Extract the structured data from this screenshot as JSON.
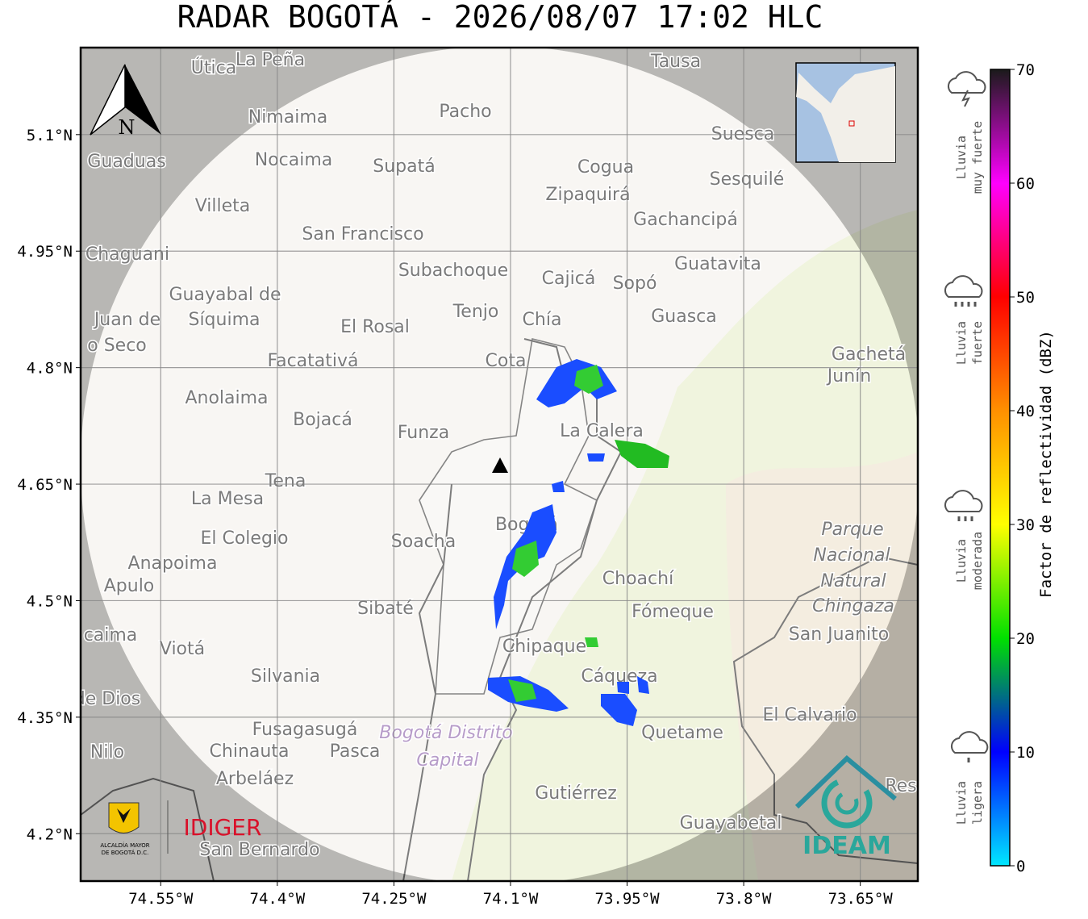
{
  "title": "RADAR BOGOTÁ - 2026/08/07 17:02 HLC",
  "map": {
    "lat_range": [
      4.139,
      5.212
    ],
    "lon_range": [
      -74.653,
      -73.576
    ],
    "lat_ticks": [
      {
        "value": 5.1,
        "label": "5.1°N"
      },
      {
        "value": 4.95,
        "label": "4.95°N"
      },
      {
        "value": 4.8,
        "label": "4.8°N"
      },
      {
        "value": 4.65,
        "label": "4.65°N"
      },
      {
        "value": 4.5,
        "label": "4.5°N"
      },
      {
        "value": 4.35,
        "label": "4.35°N"
      },
      {
        "value": 4.2,
        "label": "4.2°N"
      }
    ],
    "lon_ticks": [
      {
        "value": -74.55,
        "label": "74.55°W"
      },
      {
        "value": -74.4,
        "label": "74.4°W"
      },
      {
        "value": -74.25,
        "label": "74.25°W"
      },
      {
        "value": -74.1,
        "label": "74.1°W"
      },
      {
        "value": -73.95,
        "label": "73.95°W"
      },
      {
        "value": -73.8,
        "label": "73.8°W"
      },
      {
        "value": -73.65,
        "label": "73.65°W"
      }
    ],
    "grid": true,
    "north": "N",
    "places": [
      "Útica",
      "La Peña",
      "Tausa",
      "Pacho",
      "Nimaima",
      "Guaduas",
      "Nocaima",
      "Supatá",
      "Cogua",
      "Suesca",
      "Sesquilé",
      "Zipaquirá",
      "Villeta",
      "Gachancipá",
      "San Francisco",
      "Chaguani",
      "Guatavita",
      "Subachoque",
      "Cajicá",
      "Sopó",
      "Guayabal de",
      "Síquima",
      "Juan de",
      "Tenjo",
      "Chía",
      "Guasca",
      "El Rosal",
      "o Seco",
      "Facatativá",
      "Gachetá",
      "Junín",
      "Cota",
      "Anolaima",
      "Bojacá",
      "Funza",
      "La Calera",
      "Tena",
      "La Mesa",
      "Parque",
      "El Colegio",
      "Soacha",
      "Bogotá",
      "Nacional",
      "Anapoima",
      "Natural",
      "Choachí",
      "Apulo",
      "Chingaza",
      "Sibaté",
      "Fómeque",
      "San Juanito",
      "caima",
      "Chipaque",
      "Viotá",
      "Silvania",
      "Cáqueza",
      "de Dios",
      "El Calvario",
      "Quetame",
      "Fusagasugá",
      "Bogotá Distrito",
      "Capital",
      "Nilo",
      "Chinauta",
      "Pasca",
      "Arbeláez",
      "Gutiérrez",
      "Guayabetal",
      "San Bernardo",
      "Res"
    ]
  },
  "colorbar": {
    "label": "Factor de reflectividad (dBZ)",
    "range": [
      0,
      70
    ],
    "ticks": [
      0,
      10,
      20,
      30,
      40,
      50,
      60,
      70
    ],
    "colors": [
      "#00e8ff",
      "#0000ff",
      "#00e000",
      "#ffff00",
      "#ff9000",
      "#ff0000",
      "#ff00ff",
      "#1a1a1a"
    ],
    "categories": [
      [
        "Lluvia",
        "muy fuerte"
      ],
      [
        "Lluvia",
        "fuerte"
      ],
      [
        "Lluvia",
        "moderada"
      ],
      [
        "Lluvia",
        "ligera"
      ]
    ]
  },
  "logos": {
    "alcaldia": [
      "ALCALDÍA MAYOR",
      "DE BOGOTÁ D.C."
    ],
    "idiger": "IDIGER",
    "ideam": "IDEAM"
  }
}
